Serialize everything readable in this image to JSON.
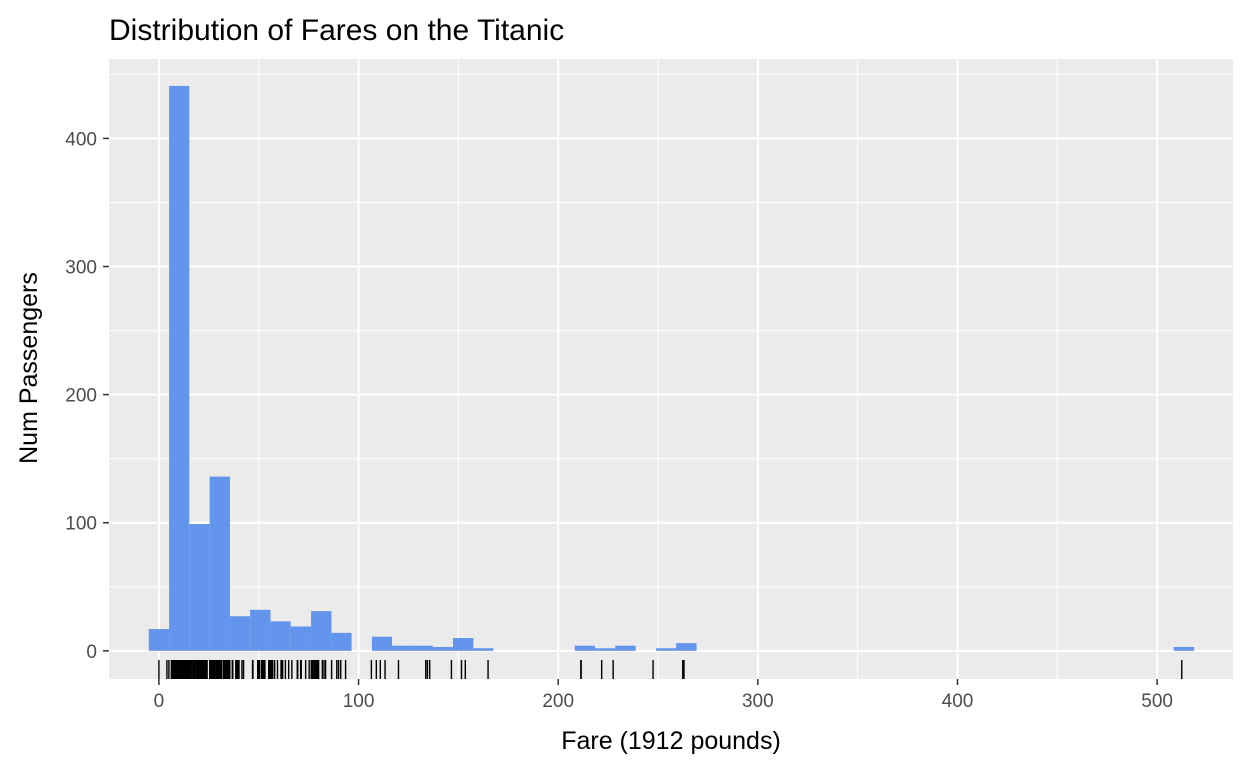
{
  "chart_data": {
    "type": "bar",
    "title": "Distribution of Fares on the Titanic",
    "xlabel": "Fare (1912 pounds)",
    "ylabel": "Num Passengers",
    "xlim": [
      -25,
      538
    ],
    "ylim": [
      -22,
      462
    ],
    "xticks": [
      0,
      100,
      200,
      300,
      400,
      500
    ],
    "xtick_labels": [
      "0",
      "100",
      "200",
      "300",
      "400",
      "500"
    ],
    "yticks": [
      0,
      100,
      200,
      300,
      400
    ],
    "ytick_labels": [
      "0",
      "100",
      "200",
      "300",
      "400"
    ],
    "x_minor_ticks": [
      50,
      150,
      250,
      350,
      450
    ],
    "y_minor_ticks": [
      50,
      150,
      250,
      350,
      450
    ],
    "grid": true,
    "panel_color": "#ebebeb",
    "bar_color": "#6495ed",
    "rug_color": "#000000",
    "bins": [
      {
        "x0": -5.1,
        "x1": 5.1,
        "count": 17
      },
      {
        "x0": 5.1,
        "x1": 15.2,
        "count": 441
      },
      {
        "x0": 15.2,
        "x1": 25.4,
        "count": 99
      },
      {
        "x0": 25.4,
        "x1": 35.6,
        "count": 136
      },
      {
        "x0": 35.6,
        "x1": 45.7,
        "count": 27
      },
      {
        "x0": 45.7,
        "x1": 55.9,
        "count": 32
      },
      {
        "x0": 55.9,
        "x1": 66.0,
        "count": 23
      },
      {
        "x0": 66.0,
        "x1": 76.2,
        "count": 19
      },
      {
        "x0": 76.2,
        "x1": 86.4,
        "count": 31
      },
      {
        "x0": 86.4,
        "x1": 96.5,
        "count": 14
      },
      {
        "x0": 96.5,
        "x1": 106.7,
        "count": 0
      },
      {
        "x0": 106.7,
        "x1": 116.8,
        "count": 11
      },
      {
        "x0": 116.8,
        "x1": 127.0,
        "count": 4
      },
      {
        "x0": 127.0,
        "x1": 137.2,
        "count": 4
      },
      {
        "x0": 137.2,
        "x1": 147.3,
        "count": 3
      },
      {
        "x0": 147.3,
        "x1": 157.5,
        "count": 10
      },
      {
        "x0": 157.5,
        "x1": 167.6,
        "count": 2
      },
      {
        "x0": 208.3,
        "x1": 218.4,
        "count": 4
      },
      {
        "x0": 218.4,
        "x1": 228.6,
        "count": 2
      },
      {
        "x0": 228.6,
        "x1": 238.8,
        "count": 4
      },
      {
        "x0": 249.0,
        "x1": 259.1,
        "count": 2
      },
      {
        "x0": 259.1,
        "x1": 269.3,
        "count": 6
      },
      {
        "x0": 508.3,
        "x1": 518.5,
        "count": 3
      }
    ],
    "rug": [
      0,
      4.0125,
      5,
      6.2375,
      6.4375,
      6.45,
      6.4958,
      6.75,
      6.8583,
      6.95,
      6.975,
      7.0458,
      7.05,
      7.0542,
      7.125,
      7.1417,
      7.225,
      7.2292,
      7.25,
      7.3125,
      7.4958,
      7.5208,
      7.55,
      7.6292,
      7.65,
      7.725,
      7.7292,
      7.7333,
      7.7375,
      7.7417,
      7.75,
      7.775,
      7.7875,
      7.7958,
      7.8,
      7.8292,
      7.8542,
      7.875,
      7.8792,
      7.8875,
      7.8958,
      7.925,
      8.0292,
      8.05,
      8.1125,
      8.1375,
      8.1583,
      8.3,
      8.3625,
      8.4042,
      8.4333,
      8.4583,
      8.5167,
      8.6542,
      8.6625,
      8.6833,
      8.7125,
      8.85,
      9,
      9.2167,
      9.225,
      9.35,
      9.475,
      9.4833,
      9.5,
      9.5875,
      9.825,
      9.8375,
      9.8417,
      9.8458,
      10.1708,
      10.4625,
      10.5,
      10.5167,
      11.1333,
      11.2417,
      11.5,
      12,
      12.275,
      12.2875,
      12.35,
      12.475,
      12.525,
      12.65,
      12.875,
      13,
      13.4167,
      13.5,
      13.7917,
      13.8583,
      13.8625,
      14,
      14.1083,
      14.4,
      14.4542,
      14.4583,
      14.5,
      15,
      15.0458,
      15.05,
      15.1,
      15.2458,
      15.5,
      15.55,
      15.7417,
      15.75,
      15.85,
      15.9,
      16,
      16.1,
      16.7,
      17.4,
      17.8,
      18,
      18.75,
      18.7875,
      19.2583,
      19.5,
      19.9667,
      20.2125,
      20.25,
      20.525,
      20.575,
      21,
      21.075,
      21.6792,
      22.025,
      22.3583,
      22.525,
      23,
      23.25,
      23.45,
      24,
      24.15,
      25.4667,
      25.5875,
      25.925,
      25.9292,
      26,
      26.25,
      26.2833,
      26.2875,
      26.3875,
      26.55,
      27,
      27.7208,
      27.75,
      27.9,
      28.5,
      28.7125,
      29,
      29.125,
      29.7,
      30,
      30.0708,
      30.5,
      30.6958,
      31,
      31.275,
      31.3875,
      32.3208,
      32.5,
      33,
      33.5,
      34.0208,
      34.375,
      34.6542,
      35,
      35.5,
      36.75,
      37.0042,
      38.5,
      39,
      39.4,
      39.6,
      39.6875,
      40.125,
      41.5792,
      42.4,
      46.9,
      47.1,
      49.5,
      49.5042,
      50,
      50.4958,
      51.4792,
      51.8625,
      52,
      52.5542,
      53.1,
      55,
      55.4417,
      55.9,
      56.4958,
      56.9292,
      57,
      57.9792,
      59.4,
      61.175,
      61.3792,
      61.9792,
      63.3583,
      65,
      66.6,
      69.3,
      69.55,
      71,
      71.2833,
      73.5,
      75.25,
      76.2917,
      76.7292,
      77.2875,
      77.9583,
      78.2667,
      78.85,
      79.2,
      79.65,
      80,
      81.8583,
      82.1708,
      83.1583,
      83.475,
      86.5,
      89.1042,
      90,
      91.0792,
      93.5,
      106.425,
      108.9,
      110.8833,
      113.275,
      120,
      133.65,
      134.5,
      135.6333,
      146.5208,
      151.55,
      153.4625,
      164.8667,
      211.3375,
      211.5,
      221.7792,
      227.525,
      247.5208,
      262.375,
      263,
      512.3292
    ]
  }
}
